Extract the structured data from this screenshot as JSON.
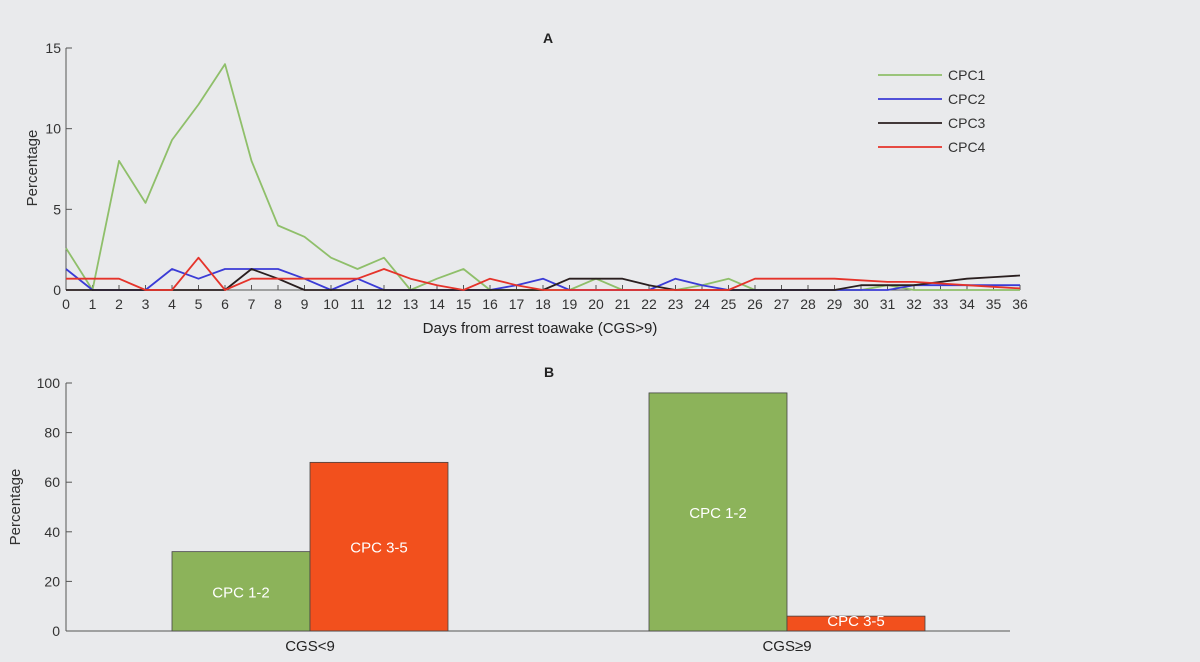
{
  "chart_data": [
    {
      "panel": "A",
      "type": "line",
      "title": "A",
      "xlabel": "Days from arrest toawake (CGS>9)",
      "ylabel": "Percentage",
      "xlim": [
        0,
        36
      ],
      "ylim": [
        0,
        15
      ],
      "xticks": [
        0,
        1,
        2,
        3,
        4,
        5,
        6,
        7,
        8,
        9,
        10,
        11,
        12,
        13,
        14,
        15,
        16,
        17,
        18,
        19,
        20,
        21,
        22,
        23,
        24,
        25,
        26,
        27,
        28,
        29,
        30,
        31,
        32,
        33,
        34,
        35,
        36
      ],
      "yticks": [
        0,
        5,
        10,
        15
      ],
      "legend_position": "top-right",
      "x": [
        0,
        1,
        2,
        3,
        4,
        5,
        6,
        7,
        8,
        9,
        10,
        11,
        12,
        13,
        14,
        15,
        16,
        17,
        18,
        19,
        20,
        21,
        22,
        23,
        24,
        25,
        26,
        27,
        28,
        29,
        30,
        31,
        32,
        33,
        34,
        35,
        36
      ],
      "series": [
        {
          "name": "CPC1",
          "color": "#8fbf6a",
          "values": [
            2.6,
            0,
            8,
            5.4,
            9.3,
            11.5,
            14,
            8,
            4,
            3.3,
            2,
            1.3,
            2,
            0,
            0.7,
            1.3,
            0,
            0,
            0,
            0,
            0.7,
            0,
            0,
            0,
            0.3,
            0.7,
            0,
            0,
            0,
            0,
            0,
            0.3,
            0,
            0,
            0,
            0,
            0
          ]
        },
        {
          "name": "CPC2",
          "color": "#3b3bd6",
          "values": [
            1.3,
            0,
            0,
            0,
            1.3,
            0.7,
            1.3,
            1.3,
            1.3,
            0.7,
            0,
            0.7,
            0,
            0,
            0,
            0,
            0,
            0.3,
            0.7,
            0,
            0,
            0,
            0,
            0.7,
            0.3,
            0,
            0,
            0,
            0,
            0,
            0,
            0,
            0.3,
            0.3,
            0.3,
            0.3,
            0.3
          ]
        },
        {
          "name": "CPC3",
          "color": "#2a1f1f",
          "values": [
            0,
            0,
            0,
            0,
            0,
            0,
            0,
            1.3,
            0.7,
            0,
            0,
            0,
            0,
            0,
            0,
            0,
            0,
            0,
            0,
            0.7,
            0.7,
            0.7,
            0.3,
            0,
            0,
            0,
            0,
            0,
            0,
            0,
            0.3,
            0.3,
            0.3,
            0.5,
            0.7,
            0.8,
            0.9
          ]
        },
        {
          "name": "CPC4",
          "color": "#e5332a",
          "values": [
            0.7,
            0.7,
            0.7,
            0,
            0,
            2,
            0,
            0.7,
            0.7,
            0.7,
            0.7,
            0.7,
            1.3,
            0.7,
            0.3,
            0,
            0.7,
            0.3,
            0,
            0,
            0,
            0,
            0,
            0,
            0,
            0,
            0.7,
            0.7,
            0.7,
            0.7,
            0.6,
            0.5,
            0.5,
            0.4,
            0.3,
            0.2,
            0.1
          ]
        }
      ]
    },
    {
      "panel": "B",
      "type": "bar",
      "title": "B",
      "xlabel": "",
      "ylabel": "Percentage",
      "ylim": [
        0,
        100
      ],
      "yticks": [
        0,
        20,
        40,
        60,
        80,
        100
      ],
      "categories": [
        "CGS<9",
        "CGS≥9"
      ],
      "series": [
        {
          "name": "CPC 1-2",
          "color": "#8cb35a",
          "values": [
            32,
            96
          ]
        },
        {
          "name": "CPC 3-5",
          "color": "#f2501d",
          "values": [
            68,
            6
          ]
        }
      ],
      "bar_labels": [
        [
          "CPC 1-2",
          "CPC 3-5"
        ],
        [
          "CPC 1-2",
          "CPC 3-5"
        ]
      ]
    }
  ]
}
